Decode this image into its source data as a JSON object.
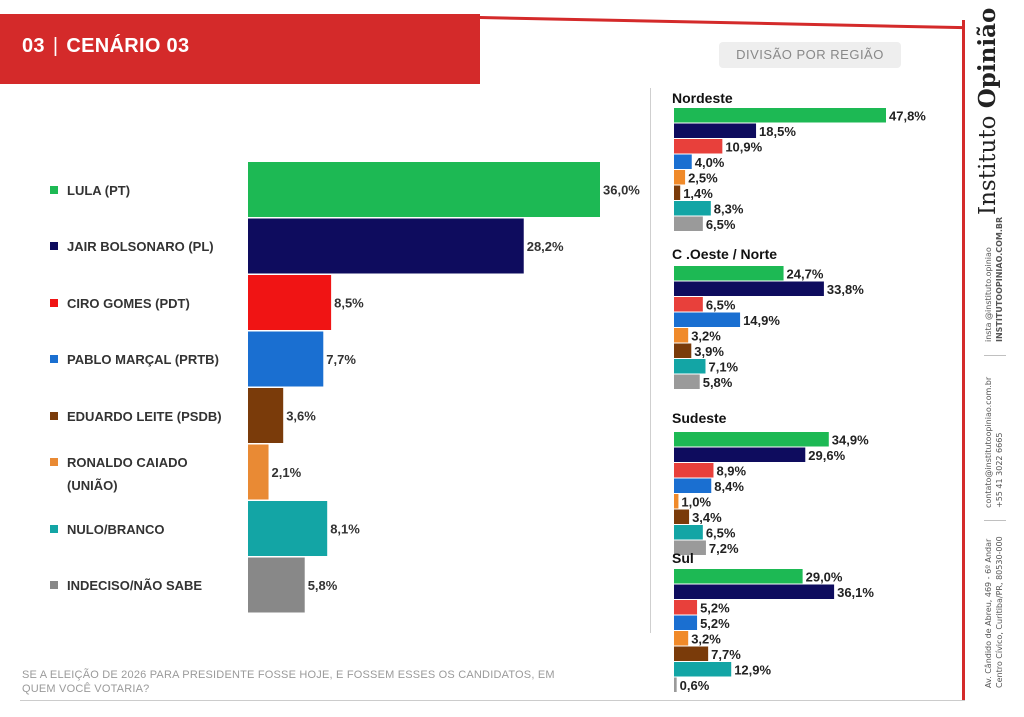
{
  "header": {
    "number": "03",
    "separator": "|",
    "title": "CENÁRIO 03"
  },
  "region_label": "DIVISÃO POR REGIÃO",
  "question": "SE A ELEIÇÃO DE 2026 PARA PRESIDENTE FOSSE HOJE, E FOSSEM ESSES OS CANDIDATOS, EM QUEM VOCÊ VOTARIA?",
  "brand": {
    "name_light": "Instituto ",
    "name_bold": "Opinião"
  },
  "contacts": {
    "social": "insta @instituto.opiniao",
    "site": "INSTITUTOOPINIAO.COM.BR",
    "email": "contato@institutoopiniao.com.br",
    "phone": "+55 41 3022 6665",
    "address1": "Av. Cândido de Abreu, 469 - 6º Andar",
    "address2": "Centro Cívico, Curitiba/PR, 80530-000"
  },
  "chart_data": [
    {
      "type": "bar",
      "orientation": "horizontal",
      "title": "CENÁRIO 03",
      "categories": [
        "LULA (PT)",
        "JAIR BOLSONARO (PL)",
        "CIRO GOMES (PDT)",
        "PABLO MARÇAL (PRTB)",
        "EDUARDO LEITE (PSDB)",
        "RONALDO CAIADO (UNIÃO)",
        "NULO/BRANCO",
        "INDECISO/NÃO SABE"
      ],
      "values": [
        36.0,
        28.2,
        8.5,
        7.7,
        3.6,
        2.1,
        8.1,
        5.8
      ],
      "value_labels": [
        "36,0%",
        "28,2%",
        "8,5%",
        "7,7%",
        "3,6%",
        "2,1%",
        "8,1%",
        "5,8%"
      ],
      "colors": [
        "#1db954",
        "#0e0c5e",
        "#f01414",
        "#1a6fd1",
        "#7a3b0a",
        "#e98a34",
        "#13a5a5",
        "#888888"
      ],
      "xlim": [
        0,
        36.0
      ]
    },
    {
      "type": "bar",
      "orientation": "horizontal",
      "title": "Nordeste",
      "categories": [
        "LULA (PT)",
        "JAIR BOLSONARO (PL)",
        "CIRO GOMES (PDT)",
        "PABLO MARÇAL (PRTB)",
        "RONALDO CAIADO (UNIÃO)",
        "EDUARDO LEITE (PSDB)",
        "NULO/BRANCO",
        "INDECISO/NÃO SABE"
      ],
      "values": [
        47.8,
        18.5,
        10.9,
        4.0,
        2.5,
        1.4,
        8.3,
        6.5
      ],
      "value_labels": [
        "47,8%",
        "18,5%",
        "10,9%",
        "4,0%",
        "2,5%",
        "1,4%",
        "8,3%",
        "6,5%"
      ],
      "colors": [
        "#1db954",
        "#0e0c5e",
        "#e8403b",
        "#1a6fd1",
        "#f08a2a",
        "#7a3b0a",
        "#13a5a5",
        "#9a9a9a"
      ],
      "xlim": [
        0,
        47.8
      ]
    },
    {
      "type": "bar",
      "orientation": "horizontal",
      "title": "C .Oeste / Norte",
      "categories": [
        "LULA (PT)",
        "JAIR BOLSONARO (PL)",
        "CIRO GOMES (PDT)",
        "PABLO MARÇAL (PRTB)",
        "RONALDO CAIADO (UNIÃO)",
        "EDUARDO LEITE (PSDB)",
        "NULO/BRANCO",
        "INDECISO/NÃO SABE"
      ],
      "values": [
        24.7,
        33.8,
        6.5,
        14.9,
        3.2,
        3.9,
        7.1,
        5.8
      ],
      "value_labels": [
        "24,7%",
        "33,8%",
        "6,5%",
        "14,9%",
        "3,2%",
        "3,9%",
        "7,1%",
        "5,8%"
      ],
      "colors": [
        "#1db954",
        "#0e0c5e",
        "#e8403b",
        "#1a6fd1",
        "#f08a2a",
        "#7a3b0a",
        "#13a5a5",
        "#9a9a9a"
      ],
      "xlim": [
        0,
        47.8
      ]
    },
    {
      "type": "bar",
      "orientation": "horizontal",
      "title": "Sudeste",
      "categories": [
        "LULA (PT)",
        "JAIR BOLSONARO (PL)",
        "CIRO GOMES (PDT)",
        "PABLO MARÇAL (PRTB)",
        "RONALDO CAIADO (UNIÃO)",
        "EDUARDO LEITE (PSDB)",
        "NULO/BRANCO",
        "INDECISO/NÃO SABE"
      ],
      "values": [
        34.9,
        29.6,
        8.9,
        8.4,
        1.0,
        3.4,
        6.5,
        7.2
      ],
      "value_labels": [
        "34,9%",
        "29,6%",
        "8,9%",
        "8,4%",
        "1,0%",
        "3,4%",
        "6,5%",
        "7,2%"
      ],
      "colors": [
        "#1db954",
        "#0e0c5e",
        "#e8403b",
        "#1a6fd1",
        "#f08a2a",
        "#7a3b0a",
        "#13a5a5",
        "#9a9a9a"
      ],
      "xlim": [
        0,
        47.8
      ]
    },
    {
      "type": "bar",
      "orientation": "horizontal",
      "title": "Sul",
      "categories": [
        "LULA (PT)",
        "JAIR BOLSONARO (PL)",
        "CIRO GOMES (PDT)",
        "PABLO MARÇAL (PRTB)",
        "RONALDO CAIADO (UNIÃO)",
        "EDUARDO LEITE (PSDB)",
        "NULO/BRANCO",
        "INDECISO/NÃO SABE"
      ],
      "values": [
        29.0,
        36.1,
        5.2,
        5.2,
        3.2,
        7.7,
        12.9,
        0.6
      ],
      "value_labels": [
        "29,0%",
        "36,1%",
        "5,2%",
        "5,2%",
        "3,2%",
        "7,7%",
        "12,9%",
        "0,6%"
      ],
      "colors": [
        "#1db954",
        "#0e0c5e",
        "#e8403b",
        "#1a6fd1",
        "#f08a2a",
        "#7a3b0a",
        "#13a5a5",
        "#9a9a9a"
      ],
      "xlim": [
        0,
        47.8
      ]
    }
  ]
}
